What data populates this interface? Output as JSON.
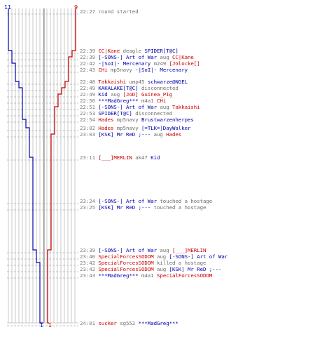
{
  "colors": {
    "red": "#cc0000",
    "blue": "#0000aa",
    "grey": "#7a7a7a",
    "grid": "#c8c8c8"
  },
  "timeline": {
    "blue_start": "11",
    "red_start": "9",
    "blue_end": "1",
    "red_end": "1"
  },
  "events": [
    {
      "time": "22:27",
      "parts": [
        {
          "text": "round started",
          "team": "sys"
        }
      ]
    },
    {
      "time": "22:39",
      "parts": [
        {
          "text": "CC|Kane",
          "team": "red"
        },
        {
          "text": " deagle ",
          "team": "sys"
        },
        {
          "text": "SPIDER[T@C]",
          "team": "blue"
        }
      ]
    },
    {
      "time": "22:39",
      "parts": [
        {
          "text": "[-SONS-] Art of War",
          "team": "blue"
        },
        {
          "text": " aug ",
          "team": "sys"
        },
        {
          "text": "CC|Kane",
          "team": "red"
        }
      ]
    },
    {
      "time": "22:42",
      "parts": [
        {
          "text": "-|SoI|- Mercenary",
          "team": "blue"
        },
        {
          "text": " m249 ",
          "team": "sys"
        },
        {
          "text": "[JGlocke[]",
          "team": "red"
        }
      ]
    },
    {
      "time": "22:43",
      "parts": [
        {
          "text": "CHi",
          "team": "red"
        },
        {
          "text": " mp5navy ",
          "team": "sys"
        },
        {
          "text": "-|SoI|- Mercenary",
          "team": "blue"
        }
      ]
    },
    {
      "time": "22:48",
      "parts": [
        {
          "text": "Takkaishi",
          "team": "red"
        },
        {
          "text": " ump45 ",
          "team": "sys"
        },
        {
          "text": "schwarze@NGEL",
          "team": "blue"
        }
      ]
    },
    {
      "time": "22:49",
      "parts": [
        {
          "text": "KAKALAKE[T@C]",
          "team": "blue"
        },
        {
          "text": " disconnected",
          "team": "sys"
        }
      ]
    },
    {
      "time": "22:49",
      "parts": [
        {
          "text": "Kid",
          "team": "blue"
        },
        {
          "text": " aug ",
          "team": "sys"
        },
        {
          "text": "[JoD] Guinea_Pig",
          "team": "red"
        }
      ]
    },
    {
      "time": "22:50",
      "parts": [
        {
          "text": "***MadGreg***",
          "team": "blue"
        },
        {
          "text": " m4a1 ",
          "team": "sys"
        },
        {
          "text": "CHi",
          "team": "red"
        }
      ]
    },
    {
      "time": "22:51",
      "parts": [
        {
          "text": "[-SONS-] Art of War",
          "team": "blue"
        },
        {
          "text": " aug ",
          "team": "sys"
        },
        {
          "text": "Takkaishi",
          "team": "red"
        }
      ]
    },
    {
      "time": "22:53",
      "parts": [
        {
          "text": "SPIDER[T@C]",
          "team": "blue"
        },
        {
          "text": " disconnected",
          "team": "sys"
        }
      ]
    },
    {
      "time": "22:54",
      "parts": [
        {
          "text": "Hades",
          "team": "red"
        },
        {
          "text": " mp5navy ",
          "team": "sys"
        },
        {
          "text": "Brustwarzenherpes",
          "team": "blue"
        }
      ]
    },
    {
      "time": "23:02",
      "parts": [
        {
          "text": "Hades",
          "team": "red"
        },
        {
          "text": " mp5navy ",
          "team": "sys"
        },
        {
          "text": "[=TLK=]DayWalker",
          "team": "blue"
        }
      ]
    },
    {
      "time": "23:03",
      "parts": [
        {
          "text": "[KSK] Mr ReD ;---",
          "team": "blue"
        },
        {
          "text": " aug ",
          "team": "sys"
        },
        {
          "text": "Hades",
          "team": "red"
        }
      ]
    },
    {
      "time": "23:11",
      "parts": [
        {
          "text": "[___]MERLIN",
          "team": "red"
        },
        {
          "text": " ak47 ",
          "team": "sys"
        },
        {
          "text": "Kid",
          "team": "blue"
        }
      ]
    },
    {
      "time": "23:24",
      "parts": [
        {
          "text": "[-SONS-] Art of War",
          "team": "blue"
        },
        {
          "text": " touched a hostage",
          "team": "sys"
        }
      ]
    },
    {
      "time": "23:25",
      "parts": [
        {
          "text": "[KSK] Mr ReD ;---",
          "team": "blue"
        },
        {
          "text": " touched a hostage",
          "team": "sys"
        }
      ]
    },
    {
      "time": "23:39",
      "parts": [
        {
          "text": "[-SONS-] Art of War",
          "team": "blue"
        },
        {
          "text": " aug ",
          "team": "sys"
        },
        {
          "text": "[___]MERLIN",
          "team": "red"
        }
      ]
    },
    {
      "time": "23:40",
      "parts": [
        {
          "text": "SpecialForcesSODOM",
          "team": "red"
        },
        {
          "text": " aug ",
          "team": "sys"
        },
        {
          "text": "[-SONS-] Art of War",
          "team": "blue"
        }
      ]
    },
    {
      "time": "23:42",
      "parts": [
        {
          "text": "SpecialForcesSODOM",
          "team": "red"
        },
        {
          "text": " killed a hostage",
          "team": "sys"
        }
      ]
    },
    {
      "time": "23:42",
      "parts": [
        {
          "text": "SpecialForcesSODOM",
          "team": "red"
        },
        {
          "text": " aug ",
          "team": "sys"
        },
        {
          "text": "[KSK] Mr ReD ;---",
          "team": "blue"
        }
      ]
    },
    {
      "time": "23:43",
      "parts": [
        {
          "text": "***MadGreg***",
          "team": "blue"
        },
        {
          "text": " m4a1 ",
          "team": "sys"
        },
        {
          "text": "SpecialForcesSODOM",
          "team": "red"
        }
      ]
    },
    {
      "time": "24:01",
      "parts": [
        {
          "text": "sucker",
          "team": "red"
        },
        {
          "text": " sg552 ",
          "team": "sys"
        },
        {
          "text": "***MadGreg***",
          "team": "blue"
        }
      ]
    }
  ]
}
